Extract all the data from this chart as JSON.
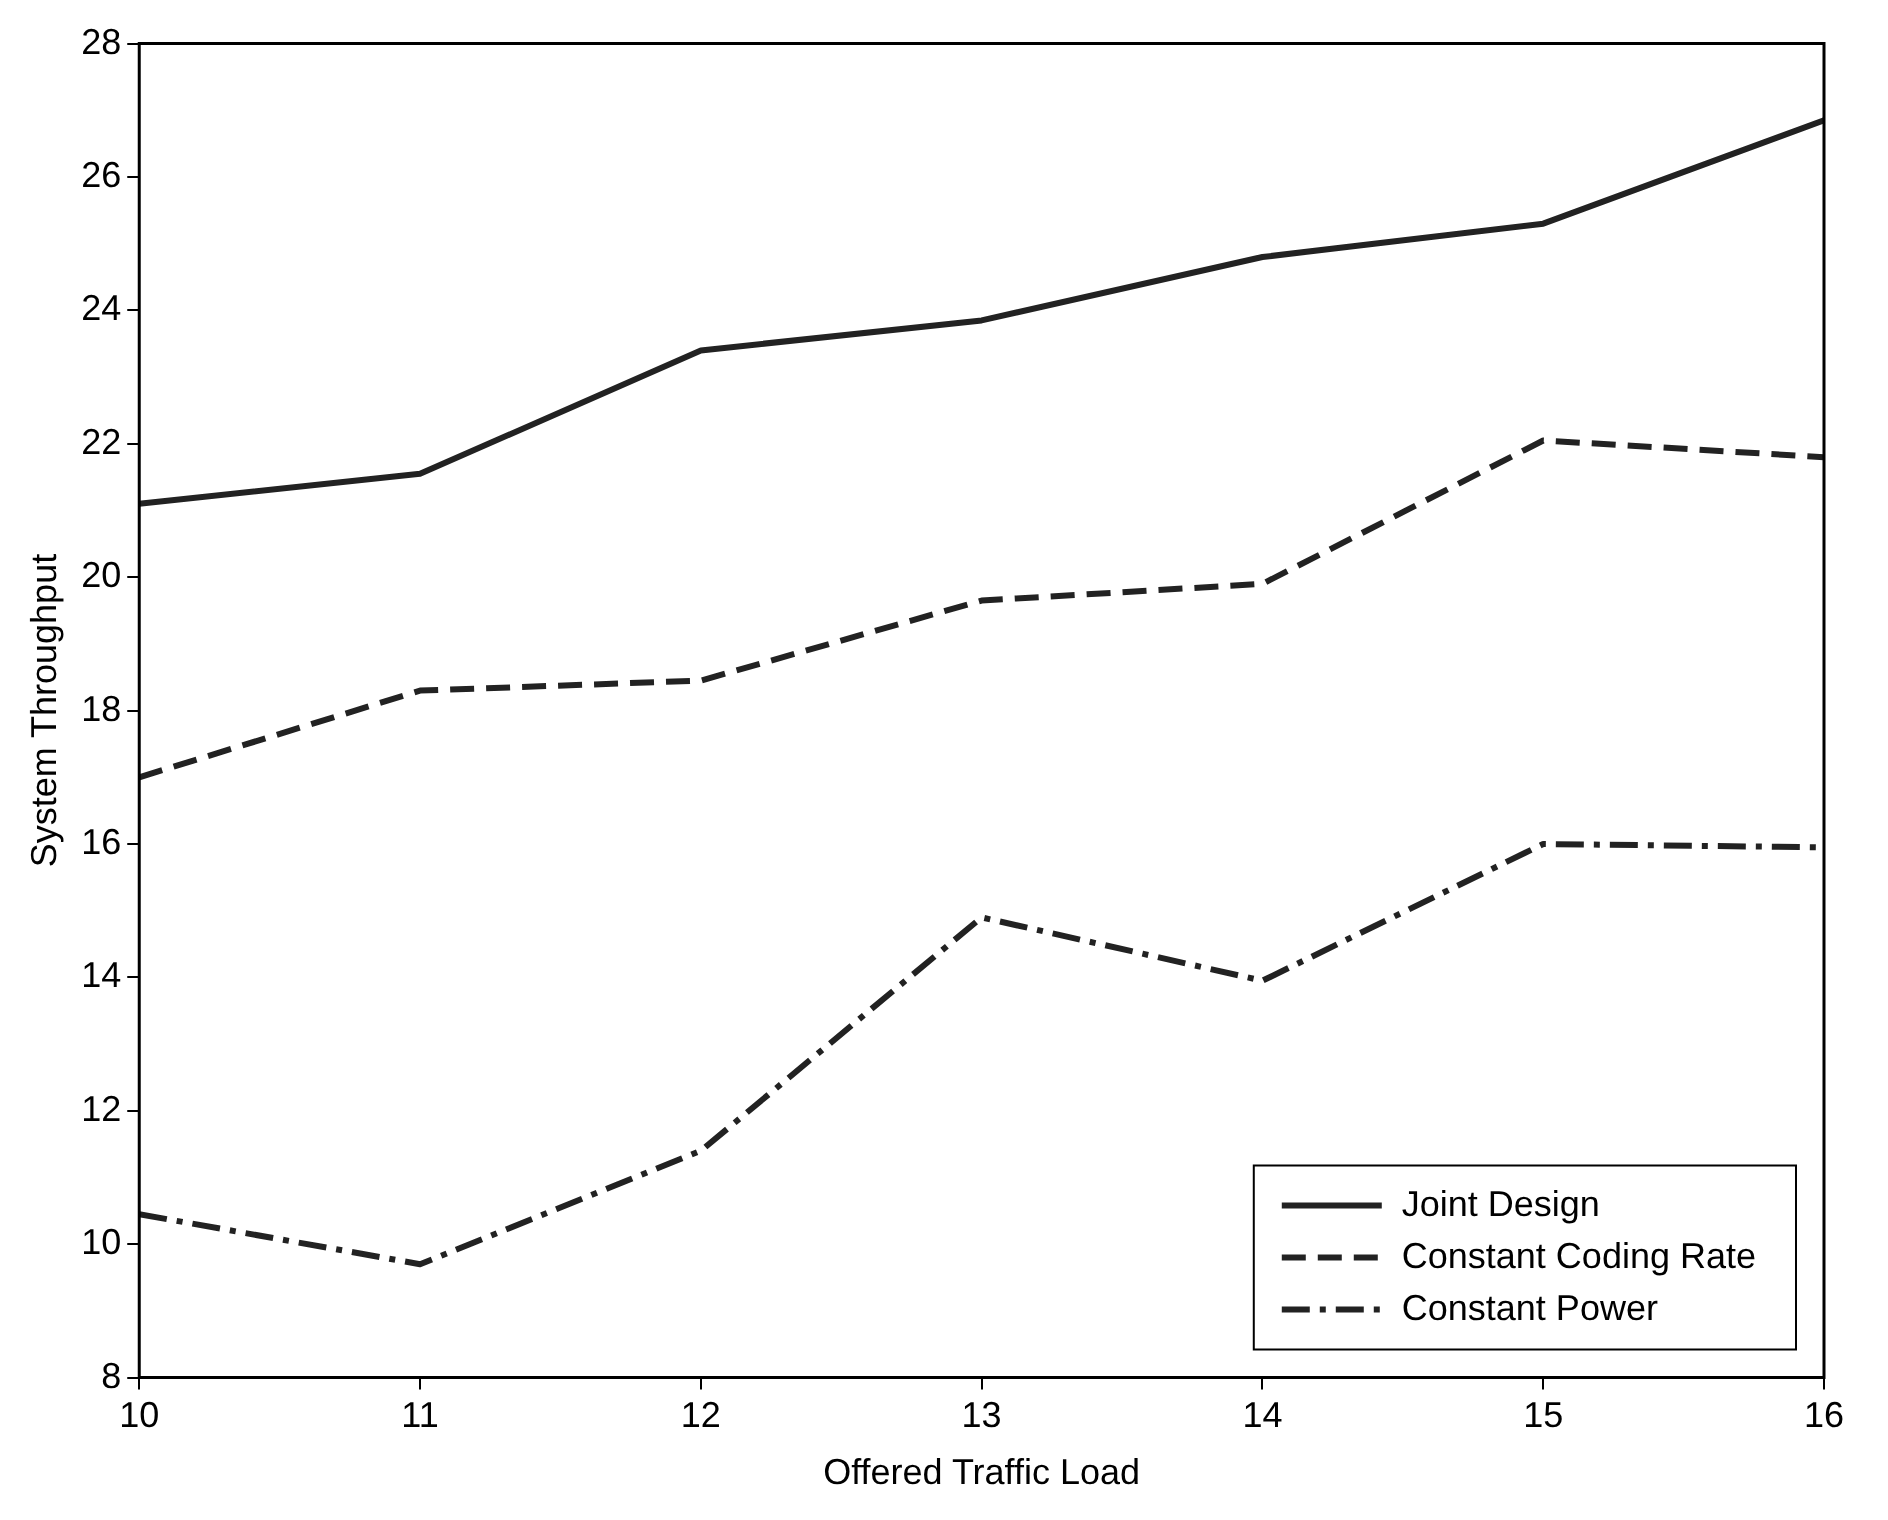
{
  "chart_data": {
    "type": "line",
    "xlabel": "Offered Traffic Load",
    "ylabel": "System Throughput",
    "x": [
      10,
      11,
      12,
      13,
      14,
      15,
      16
    ],
    "series": [
      {
        "name": "Joint Design",
        "color": "#222222",
        "line_style": "solid",
        "values": [
          21.1,
          21.55,
          23.4,
          23.85,
          24.8,
          25.3,
          26.85
        ]
      },
      {
        "name": "Constant Coding Rate",
        "color": "#222222",
        "line_style": "dashed",
        "values": [
          17.0,
          18.3,
          18.45,
          19.65,
          19.9,
          22.05,
          21.8
        ]
      },
      {
        "name": "Constant Power",
        "color": "#222222",
        "line_style": "dashdot",
        "values": [
          10.45,
          9.7,
          11.4,
          14.9,
          13.95,
          16.0,
          15.95
        ]
      }
    ],
    "xlim": [
      10,
      16
    ],
    "xticks": [
      10,
      11,
      12,
      13,
      14,
      15,
      16
    ],
    "ylim": [
      8,
      28
    ],
    "yticks": [
      8,
      10,
      12,
      14,
      16,
      18,
      20,
      22,
      24,
      26,
      28
    ],
    "grid": false,
    "legend": "bottom right",
    "marker": "none"
  }
}
